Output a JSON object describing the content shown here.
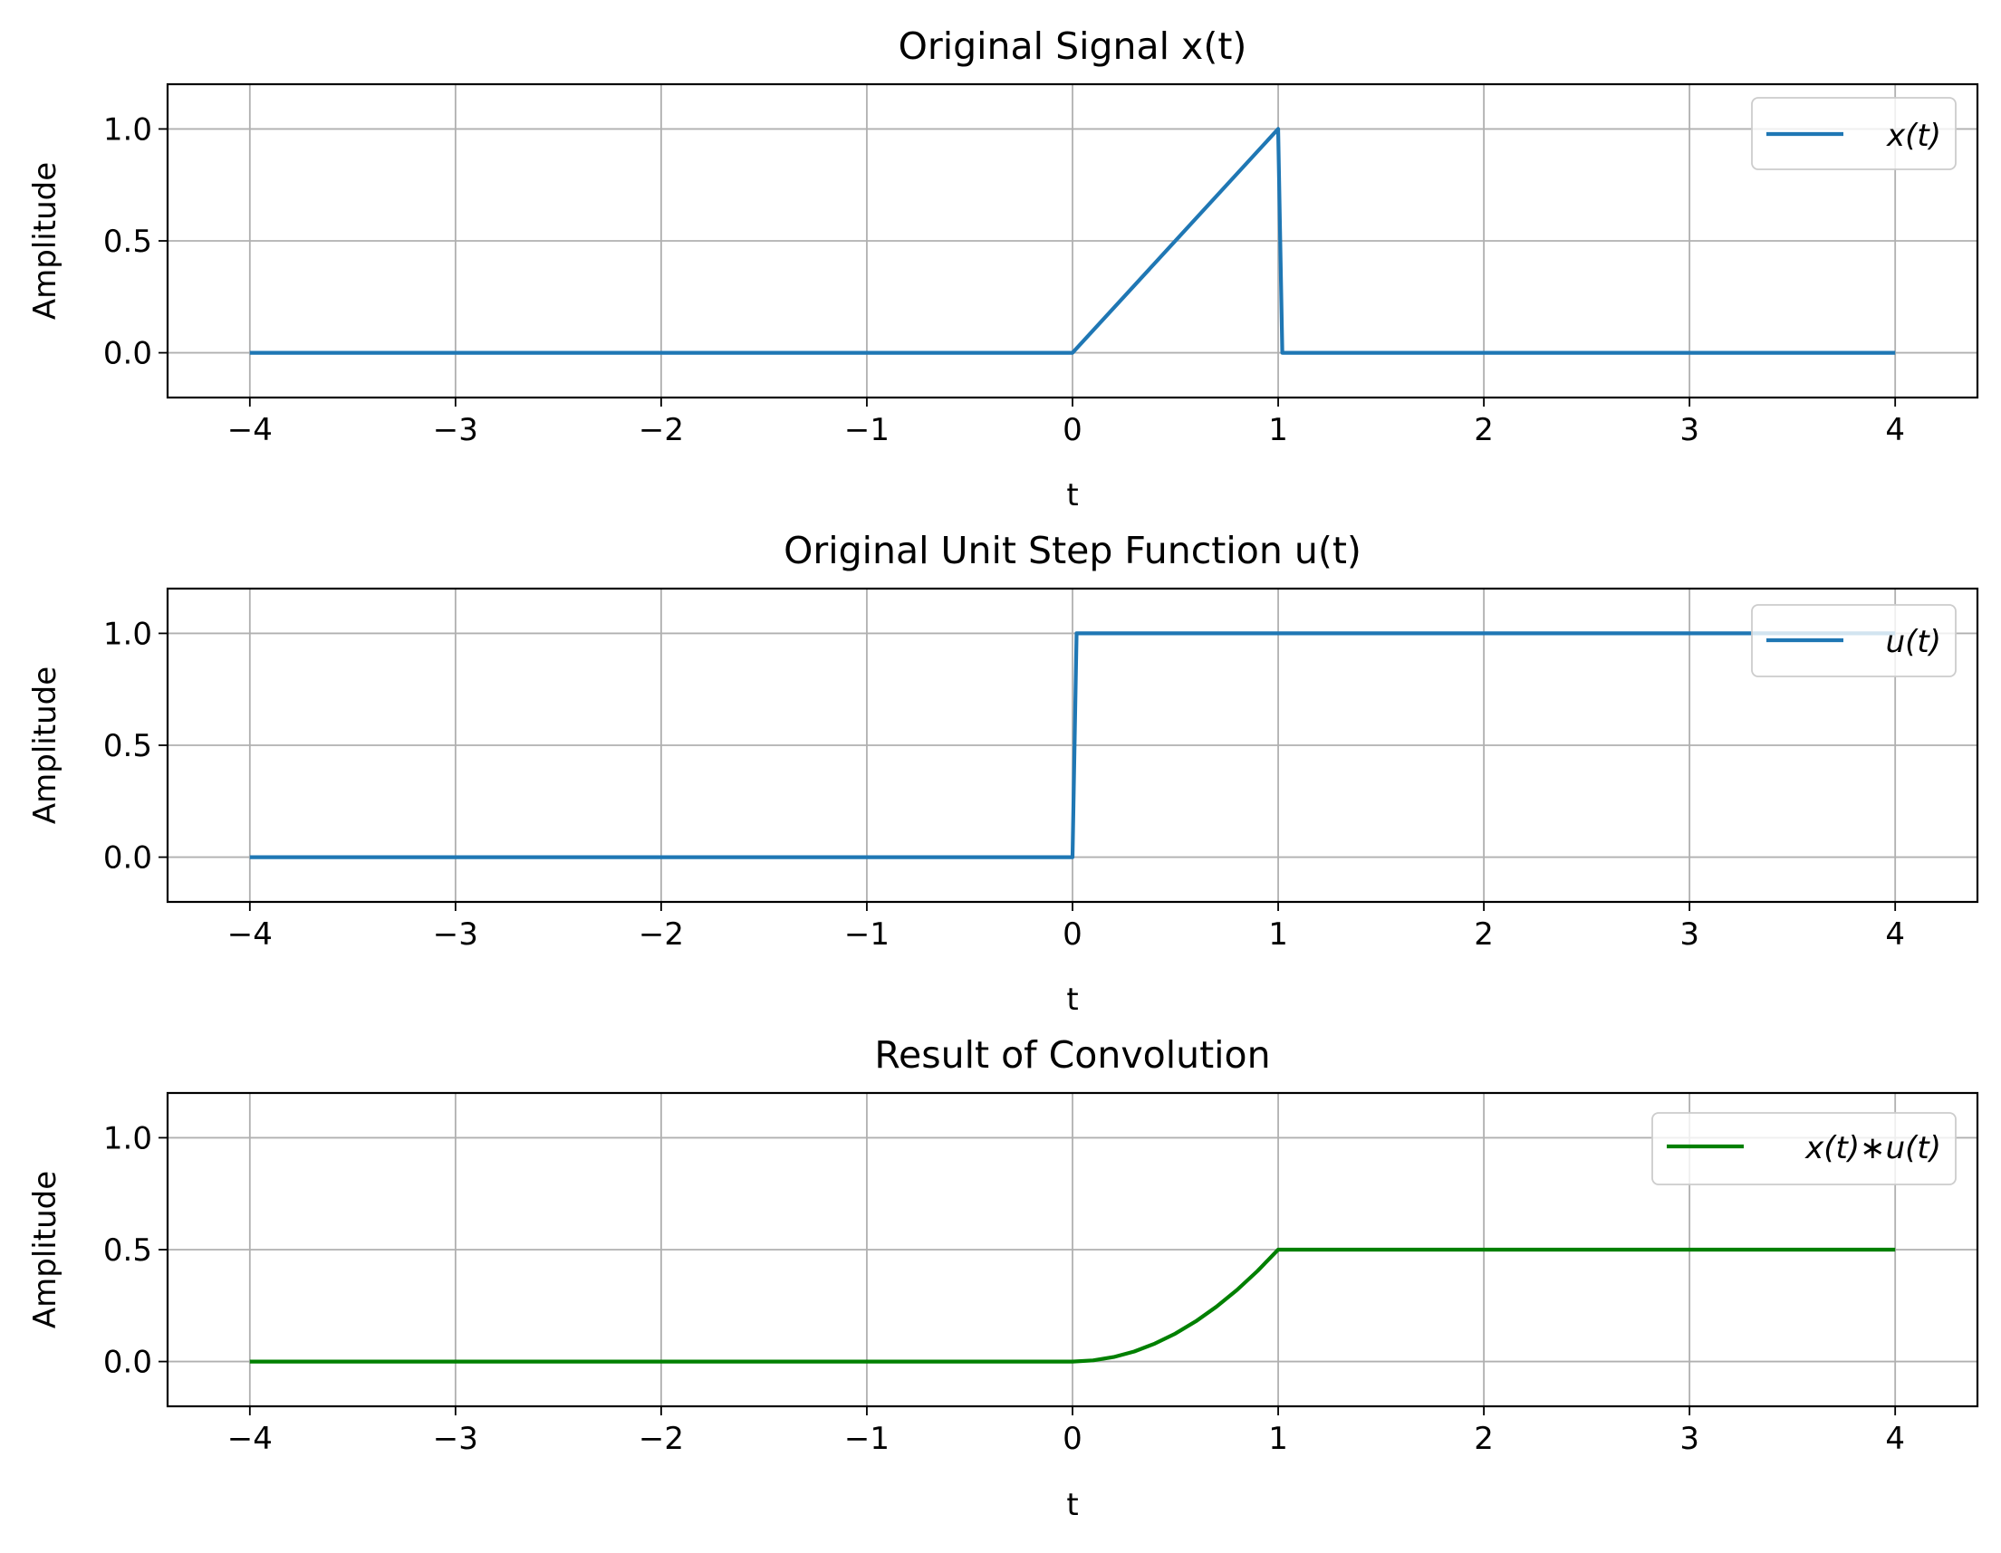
{
  "chart_data": [
    {
      "type": "line",
      "title": "Original Signal x(t)",
      "xlabel": "t",
      "ylabel": "Amplitude",
      "xlim": [
        -4.4,
        4.4
      ],
      "ylim": [
        -0.2,
        1.2
      ],
      "xticks": [
        -4,
        -3,
        -2,
        -1,
        0,
        1,
        2,
        3,
        4
      ],
      "xtick_labels": [
        "−4",
        "−3",
        "−2",
        "−1",
        "0",
        "1",
        "2",
        "3",
        "4"
      ],
      "yticks": [
        0.0,
        0.5,
        1.0
      ],
      "ytick_labels": [
        "0.0",
        "0.5",
        "1.0"
      ],
      "grid": true,
      "legend_position": "top-right",
      "series": [
        {
          "name": "x(t)",
          "color": "#1f77b4",
          "x": [
            -4,
            0,
            1,
            1.02,
            4
          ],
          "y": [
            0,
            0,
            1,
            0,
            0
          ]
        }
      ]
    },
    {
      "type": "line",
      "title": "Original Unit Step Function u(t)",
      "xlabel": "t",
      "ylabel": "Amplitude",
      "xlim": [
        -4.4,
        4.4
      ],
      "ylim": [
        -0.2,
        1.2
      ],
      "xticks": [
        -4,
        -3,
        -2,
        -1,
        0,
        1,
        2,
        3,
        4
      ],
      "xtick_labels": [
        "−4",
        "−3",
        "−2",
        "−1",
        "0",
        "1",
        "2",
        "3",
        "4"
      ],
      "yticks": [
        0.0,
        0.5,
        1.0
      ],
      "ytick_labels": [
        "0.0",
        "0.5",
        "1.0"
      ],
      "grid": true,
      "legend_position": "top-right",
      "series": [
        {
          "name": "u(t)",
          "color": "#1f77b4",
          "x": [
            -4,
            0,
            0.02,
            4
          ],
          "y": [
            0,
            0,
            1,
            1
          ]
        }
      ]
    },
    {
      "type": "line",
      "title": "Result of Convolution",
      "xlabel": "t",
      "ylabel": "Amplitude",
      "xlim": [
        -4.4,
        4.4
      ],
      "ylim": [
        -0.2,
        1.2
      ],
      "xticks": [
        -4,
        -3,
        -2,
        -1,
        0,
        1,
        2,
        3,
        4
      ],
      "xtick_labels": [
        "−4",
        "−3",
        "−2",
        "−1",
        "0",
        "1",
        "2",
        "3",
        "4"
      ],
      "yticks": [
        0.0,
        0.5,
        1.0
      ],
      "ytick_labels": [
        "0.0",
        "0.5",
        "1.0"
      ],
      "grid": true,
      "legend_position": "top-right",
      "series": [
        {
          "name": "x(t)∗u(t)",
          "color": "#008000",
          "x": [
            -4,
            0,
            0.1,
            0.2,
            0.3,
            0.4,
            0.5,
            0.6,
            0.7,
            0.8,
            0.9,
            1.0,
            4
          ],
          "y": [
            0,
            0,
            0.005,
            0.02,
            0.045,
            0.08,
            0.125,
            0.18,
            0.245,
            0.32,
            0.405,
            0.5,
            0.5
          ]
        }
      ]
    }
  ]
}
